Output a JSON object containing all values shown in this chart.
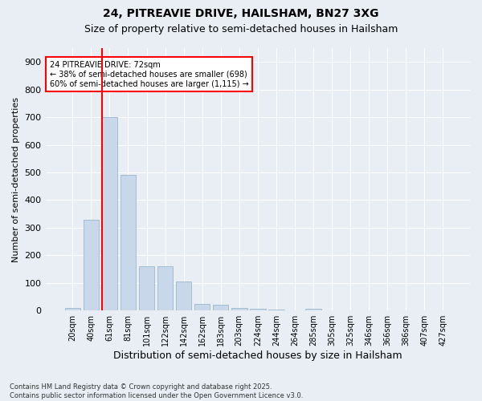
{
  "title1": "24, PITREAVIE DRIVE, HAILSHAM, BN27 3XG",
  "title2": "Size of property relative to semi-detached houses in Hailsham",
  "xlabel": "Distribution of semi-detached houses by size in Hailsham",
  "ylabel": "Number of semi-detached properties",
  "categories": [
    "20sqm",
    "40sqm",
    "61sqm",
    "81sqm",
    "101sqm",
    "122sqm",
    "142sqm",
    "162sqm",
    "183sqm",
    "203sqm",
    "224sqm",
    "244sqm",
    "264sqm",
    "285sqm",
    "305sqm",
    "325sqm",
    "346sqm",
    "366sqm",
    "386sqm",
    "407sqm",
    "427sqm"
  ],
  "values": [
    10,
    330,
    700,
    490,
    160,
    160,
    105,
    25,
    20,
    10,
    5,
    3,
    0,
    5,
    0,
    0,
    0,
    0,
    0,
    0,
    0
  ],
  "bar_color": "#c8d8ea",
  "bar_edge_color": "#9ab8cc",
  "vline_color": "red",
  "annotation_text": "24 PITREAVIE DRIVE: 72sqm\n← 38% of semi-detached houses are smaller (698)\n60% of semi-detached houses are larger (1,115) →",
  "annotation_box_color": "white",
  "annotation_box_edge_color": "red",
  "footnote": "Contains HM Land Registry data © Crown copyright and database right 2025.\nContains public sector information licensed under the Open Government Licence v3.0.",
  "ylim": [
    0,
    950
  ],
  "yticks": [
    0,
    100,
    200,
    300,
    400,
    500,
    600,
    700,
    800,
    900
  ],
  "background_color": "#e8eef4",
  "grid_color": "white",
  "title_fontsize": 10,
  "subtitle_fontsize": 9
}
